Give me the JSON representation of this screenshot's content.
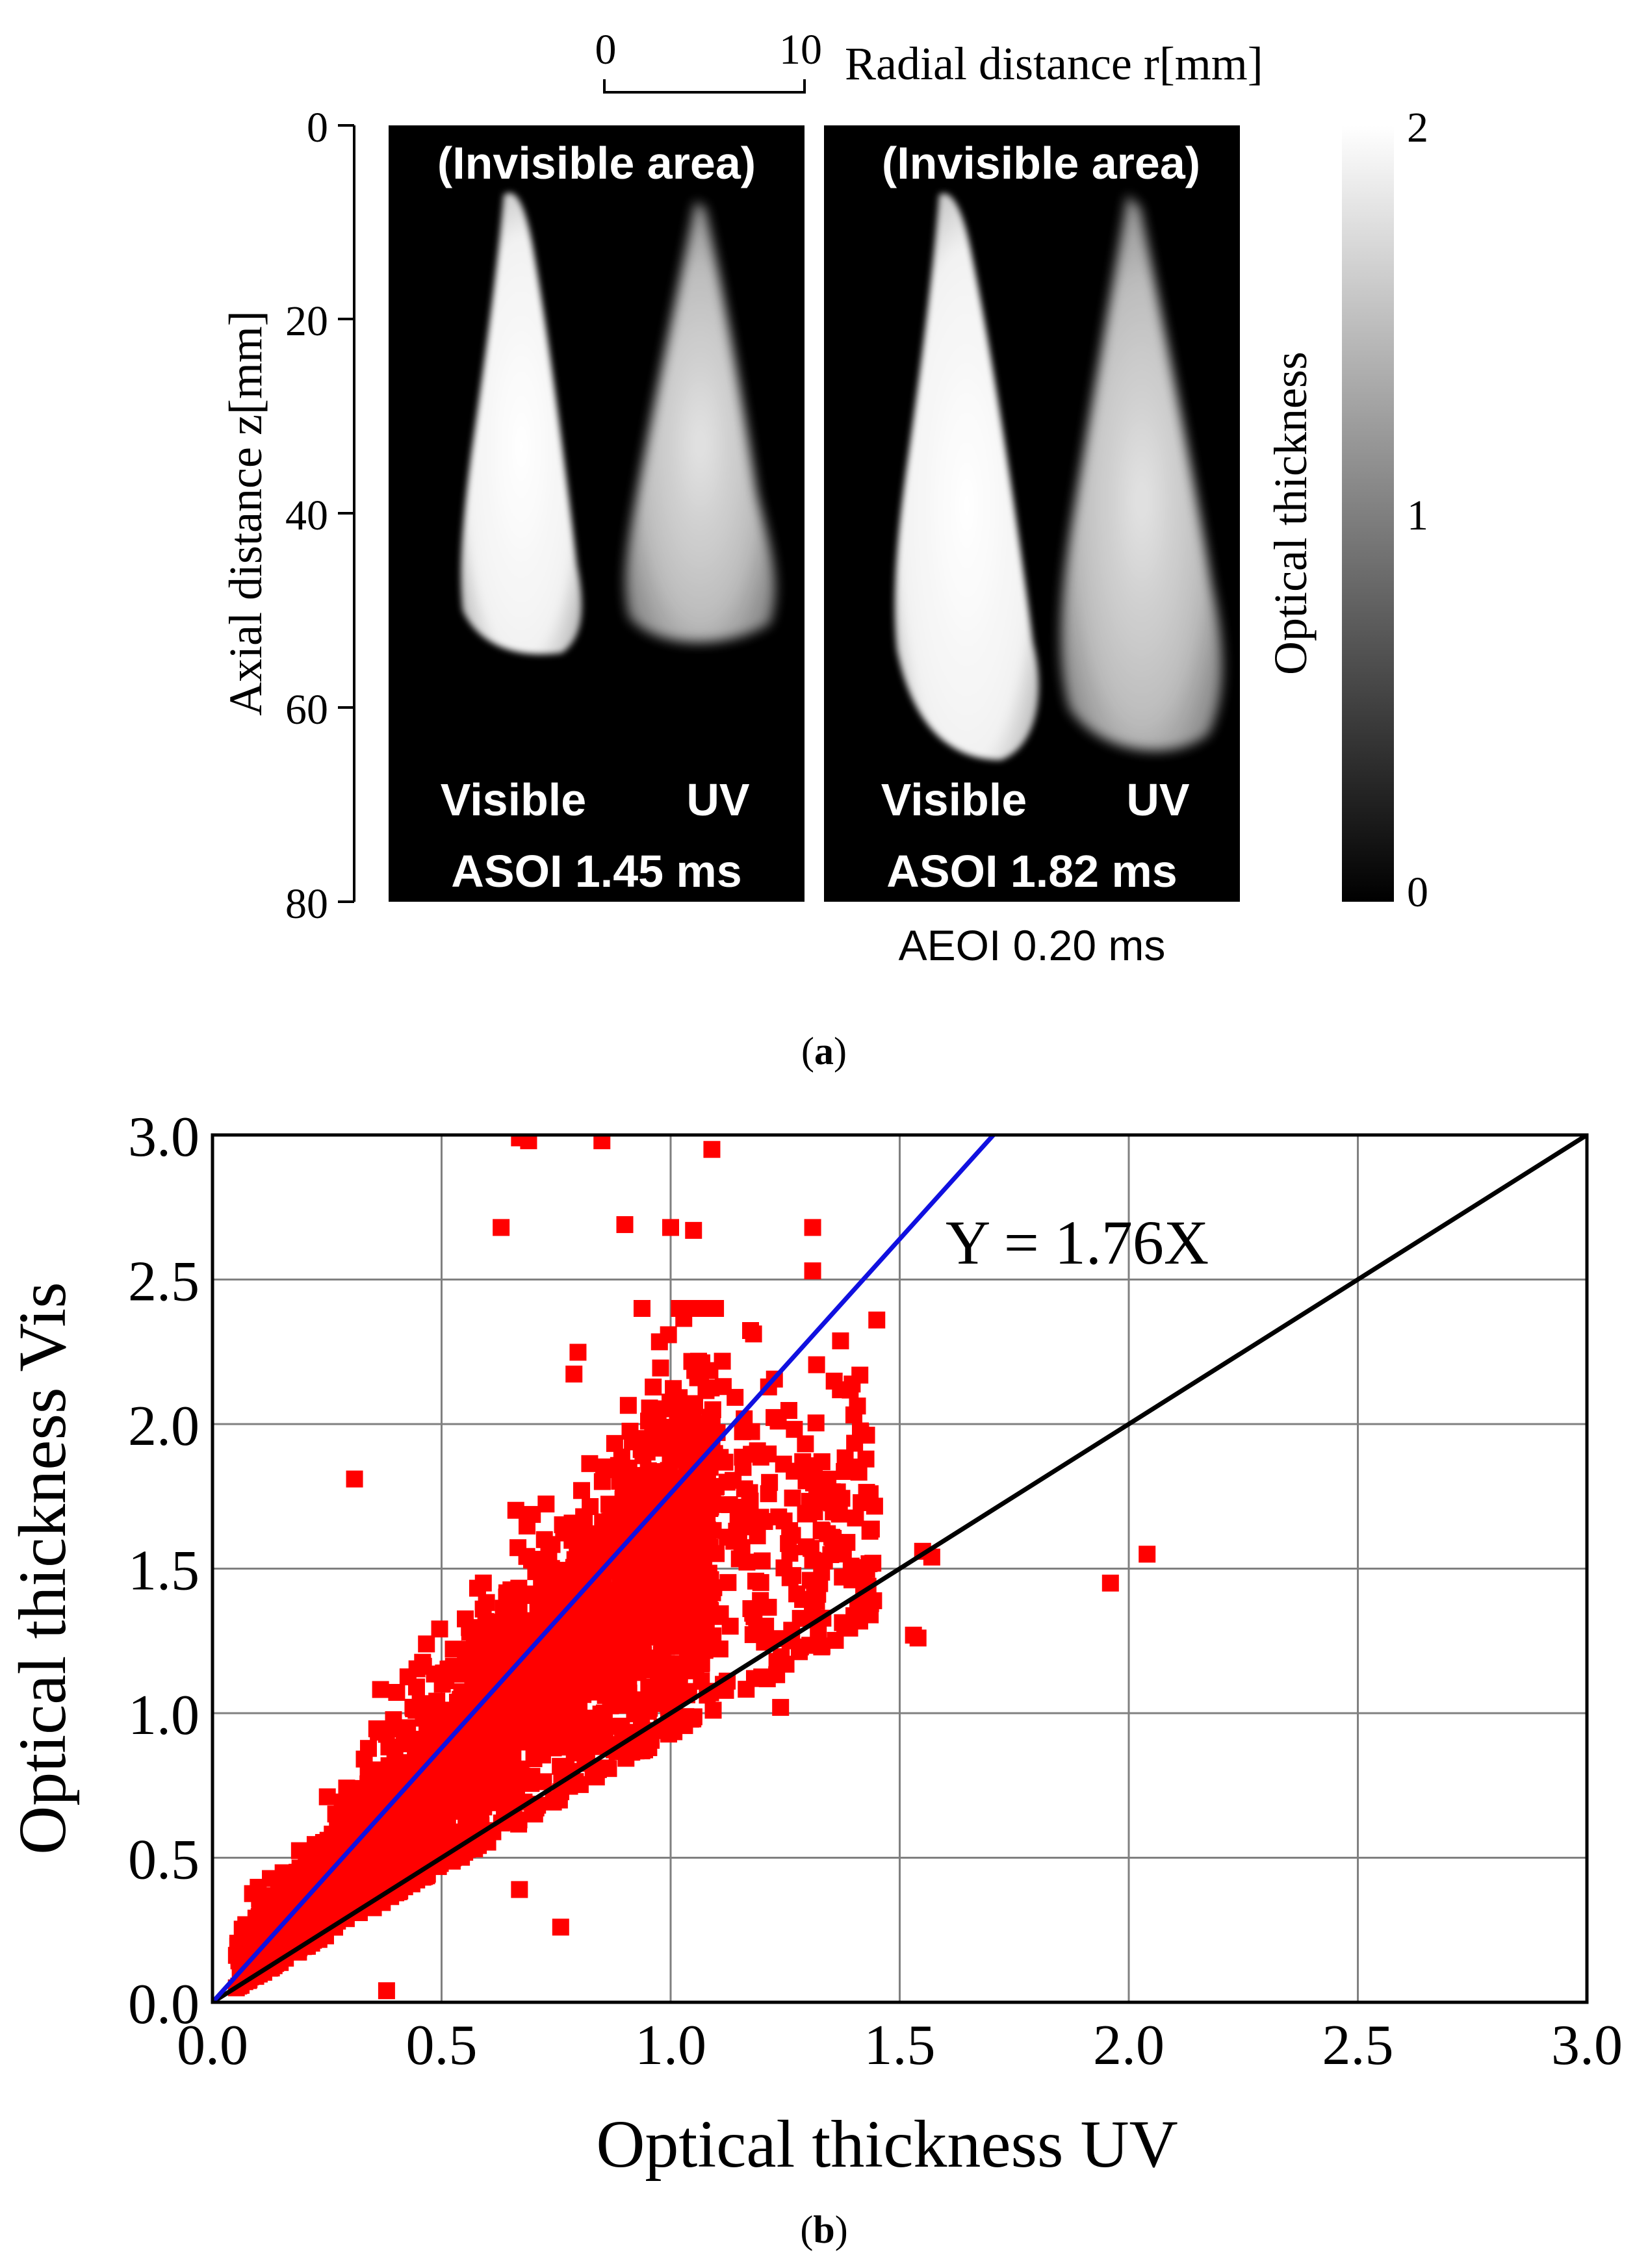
{
  "panel_a": {
    "caption": "(a)",
    "caption_letter": "a",
    "scale_bar": {
      "start_label": "0",
      "end_label": "10"
    },
    "radial_label": "Radial distance r[mm]",
    "y_axis_label": "Axial distance z[mm]",
    "y_ticks": [
      "0",
      "20",
      "40",
      "60",
      "80"
    ],
    "colorbar": {
      "label": "Optical thickness",
      "ticks": [
        "2",
        "1",
        "0"
      ]
    },
    "images": [
      {
        "top_text": "(Invisible area)",
        "left_label": "Visible",
        "right_label": "UV",
        "time": "ASOI 1.45 ms"
      },
      {
        "top_text": "(Invisible area)",
        "left_label": "Visible",
        "right_label": "UV",
        "time": "ASOI 1.82 ms"
      }
    ],
    "aeoi_text": "AEOI 0.20 ms"
  },
  "panel_b": {
    "caption": "(b)",
    "caption_letter": "b"
  },
  "colors": {
    "points": "#ff0000",
    "fit_line": "#1010e0",
    "identity_line": "#000000",
    "grid": "#808080"
  },
  "chart_data": {
    "type": "scatter",
    "title": "",
    "xlabel": "Optical thickness UV",
    "ylabel": "Optical thickness Vis",
    "xlim": [
      0.0,
      3.0
    ],
    "ylim": [
      0.0,
      3.0
    ],
    "x_ticks": [
      "0.0",
      "0.5",
      "1.0",
      "1.5",
      "2.0",
      "2.5",
      "3.0"
    ],
    "y_ticks": [
      "0.0",
      "0.5",
      "1.0",
      "1.5",
      "2.0",
      "2.5",
      "3.0"
    ],
    "grid": true,
    "annotation": "Y = 1.76X",
    "series": [
      {
        "name": "points",
        "type": "scatter",
        "dense_cloud": {
          "x_range": [
            0.05,
            1.45
          ],
          "y_range": [
            0.05,
            2.4
          ],
          "center_slope": 1.55
        },
        "outliers": [
          {
            "x": 0.67,
            "y": 2.99
          },
          {
            "x": 0.69,
            "y": 2.98
          },
          {
            "x": 0.85,
            "y": 2.98
          },
          {
            "x": 1.09,
            "y": 2.95
          },
          {
            "x": 0.63,
            "y": 2.68
          },
          {
            "x": 0.9,
            "y": 2.69
          },
          {
            "x": 1.0,
            "y": 2.68
          },
          {
            "x": 1.05,
            "y": 2.67
          },
          {
            "x": 1.31,
            "y": 2.68
          },
          {
            "x": 1.31,
            "y": 2.53
          },
          {
            "x": 1.45,
            "y": 2.36
          },
          {
            "x": 0.31,
            "y": 1.81
          },
          {
            "x": 1.55,
            "y": 1.56
          },
          {
            "x": 1.57,
            "y": 1.54
          },
          {
            "x": 1.53,
            "y": 1.27
          },
          {
            "x": 1.54,
            "y": 1.26
          },
          {
            "x": 1.24,
            "y": 1.02
          },
          {
            "x": 0.67,
            "y": 0.39
          },
          {
            "x": 0.76,
            "y": 0.26
          },
          {
            "x": 0.38,
            "y": 0.04
          },
          {
            "x": 1.96,
            "y": 1.45
          },
          {
            "x": 2.04,
            "y": 1.55
          }
        ]
      },
      {
        "name": "Y = 1.76X",
        "type": "line",
        "slope": 1.76
      },
      {
        "name": "Y = X",
        "type": "line",
        "slope": 1.0
      }
    ]
  }
}
